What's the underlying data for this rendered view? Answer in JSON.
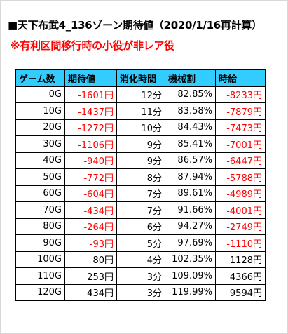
{
  "title": "■天下布武4_136ゾーン期待値（2020/1/16再計算）",
  "note": "※有利区間移行時の小役が非レア役",
  "table": {
    "headers": [
      "ゲーム数",
      "期待値",
      "消化時間",
      "機械割",
      "時給"
    ],
    "rows": [
      {
        "games": "0G",
        "ev": "-1601円",
        "time": "12分",
        "payout": "82.85%",
        "hourly": "-8233円",
        "neg": true
      },
      {
        "games": "10G",
        "ev": "-1437円",
        "time": "11分",
        "payout": "83.58%",
        "hourly": "-7879円",
        "neg": true
      },
      {
        "games": "20G",
        "ev": "-1272円",
        "time": "10分",
        "payout": "84.43%",
        "hourly": "-7473円",
        "neg": true
      },
      {
        "games": "30G",
        "ev": "-1106円",
        "time": "9分",
        "payout": "85.41%",
        "hourly": "-7001円",
        "neg": true
      },
      {
        "games": "40G",
        "ev": "-940円",
        "time": "9分",
        "payout": "86.57%",
        "hourly": "-6447円",
        "neg": true
      },
      {
        "games": "50G",
        "ev": "-772円",
        "time": "8分",
        "payout": "87.94%",
        "hourly": "-5788円",
        "neg": true
      },
      {
        "games": "60G",
        "ev": "-604円",
        "time": "7分",
        "payout": "89.61%",
        "hourly": "-4989円",
        "neg": true
      },
      {
        "games": "70G",
        "ev": "-434円",
        "time": "7分",
        "payout": "91.66%",
        "hourly": "-4001円",
        "neg": true
      },
      {
        "games": "80G",
        "ev": "-264円",
        "time": "6分",
        "payout": "94.27%",
        "hourly": "-2749円",
        "neg": true
      },
      {
        "games": "90G",
        "ev": "-93円",
        "time": "5分",
        "payout": "97.69%",
        "hourly": "-1110円",
        "neg": true
      },
      {
        "games": "100G",
        "ev": "80円",
        "time": "4分",
        "payout": "102.35%",
        "hourly": "1128円",
        "neg": false
      },
      {
        "games": "110G",
        "ev": "253円",
        "time": "3分",
        "payout": "109.09%",
        "hourly": "4366円",
        "neg": false
      },
      {
        "games": "120G",
        "ev": "434円",
        "time": "3分",
        "payout": "119.99%",
        "hourly": "9594円",
        "neg": false
      }
    ]
  },
  "colors": {
    "header_bg": "#33ccff",
    "negative": "#ff0000",
    "note": "#ff0000"
  }
}
